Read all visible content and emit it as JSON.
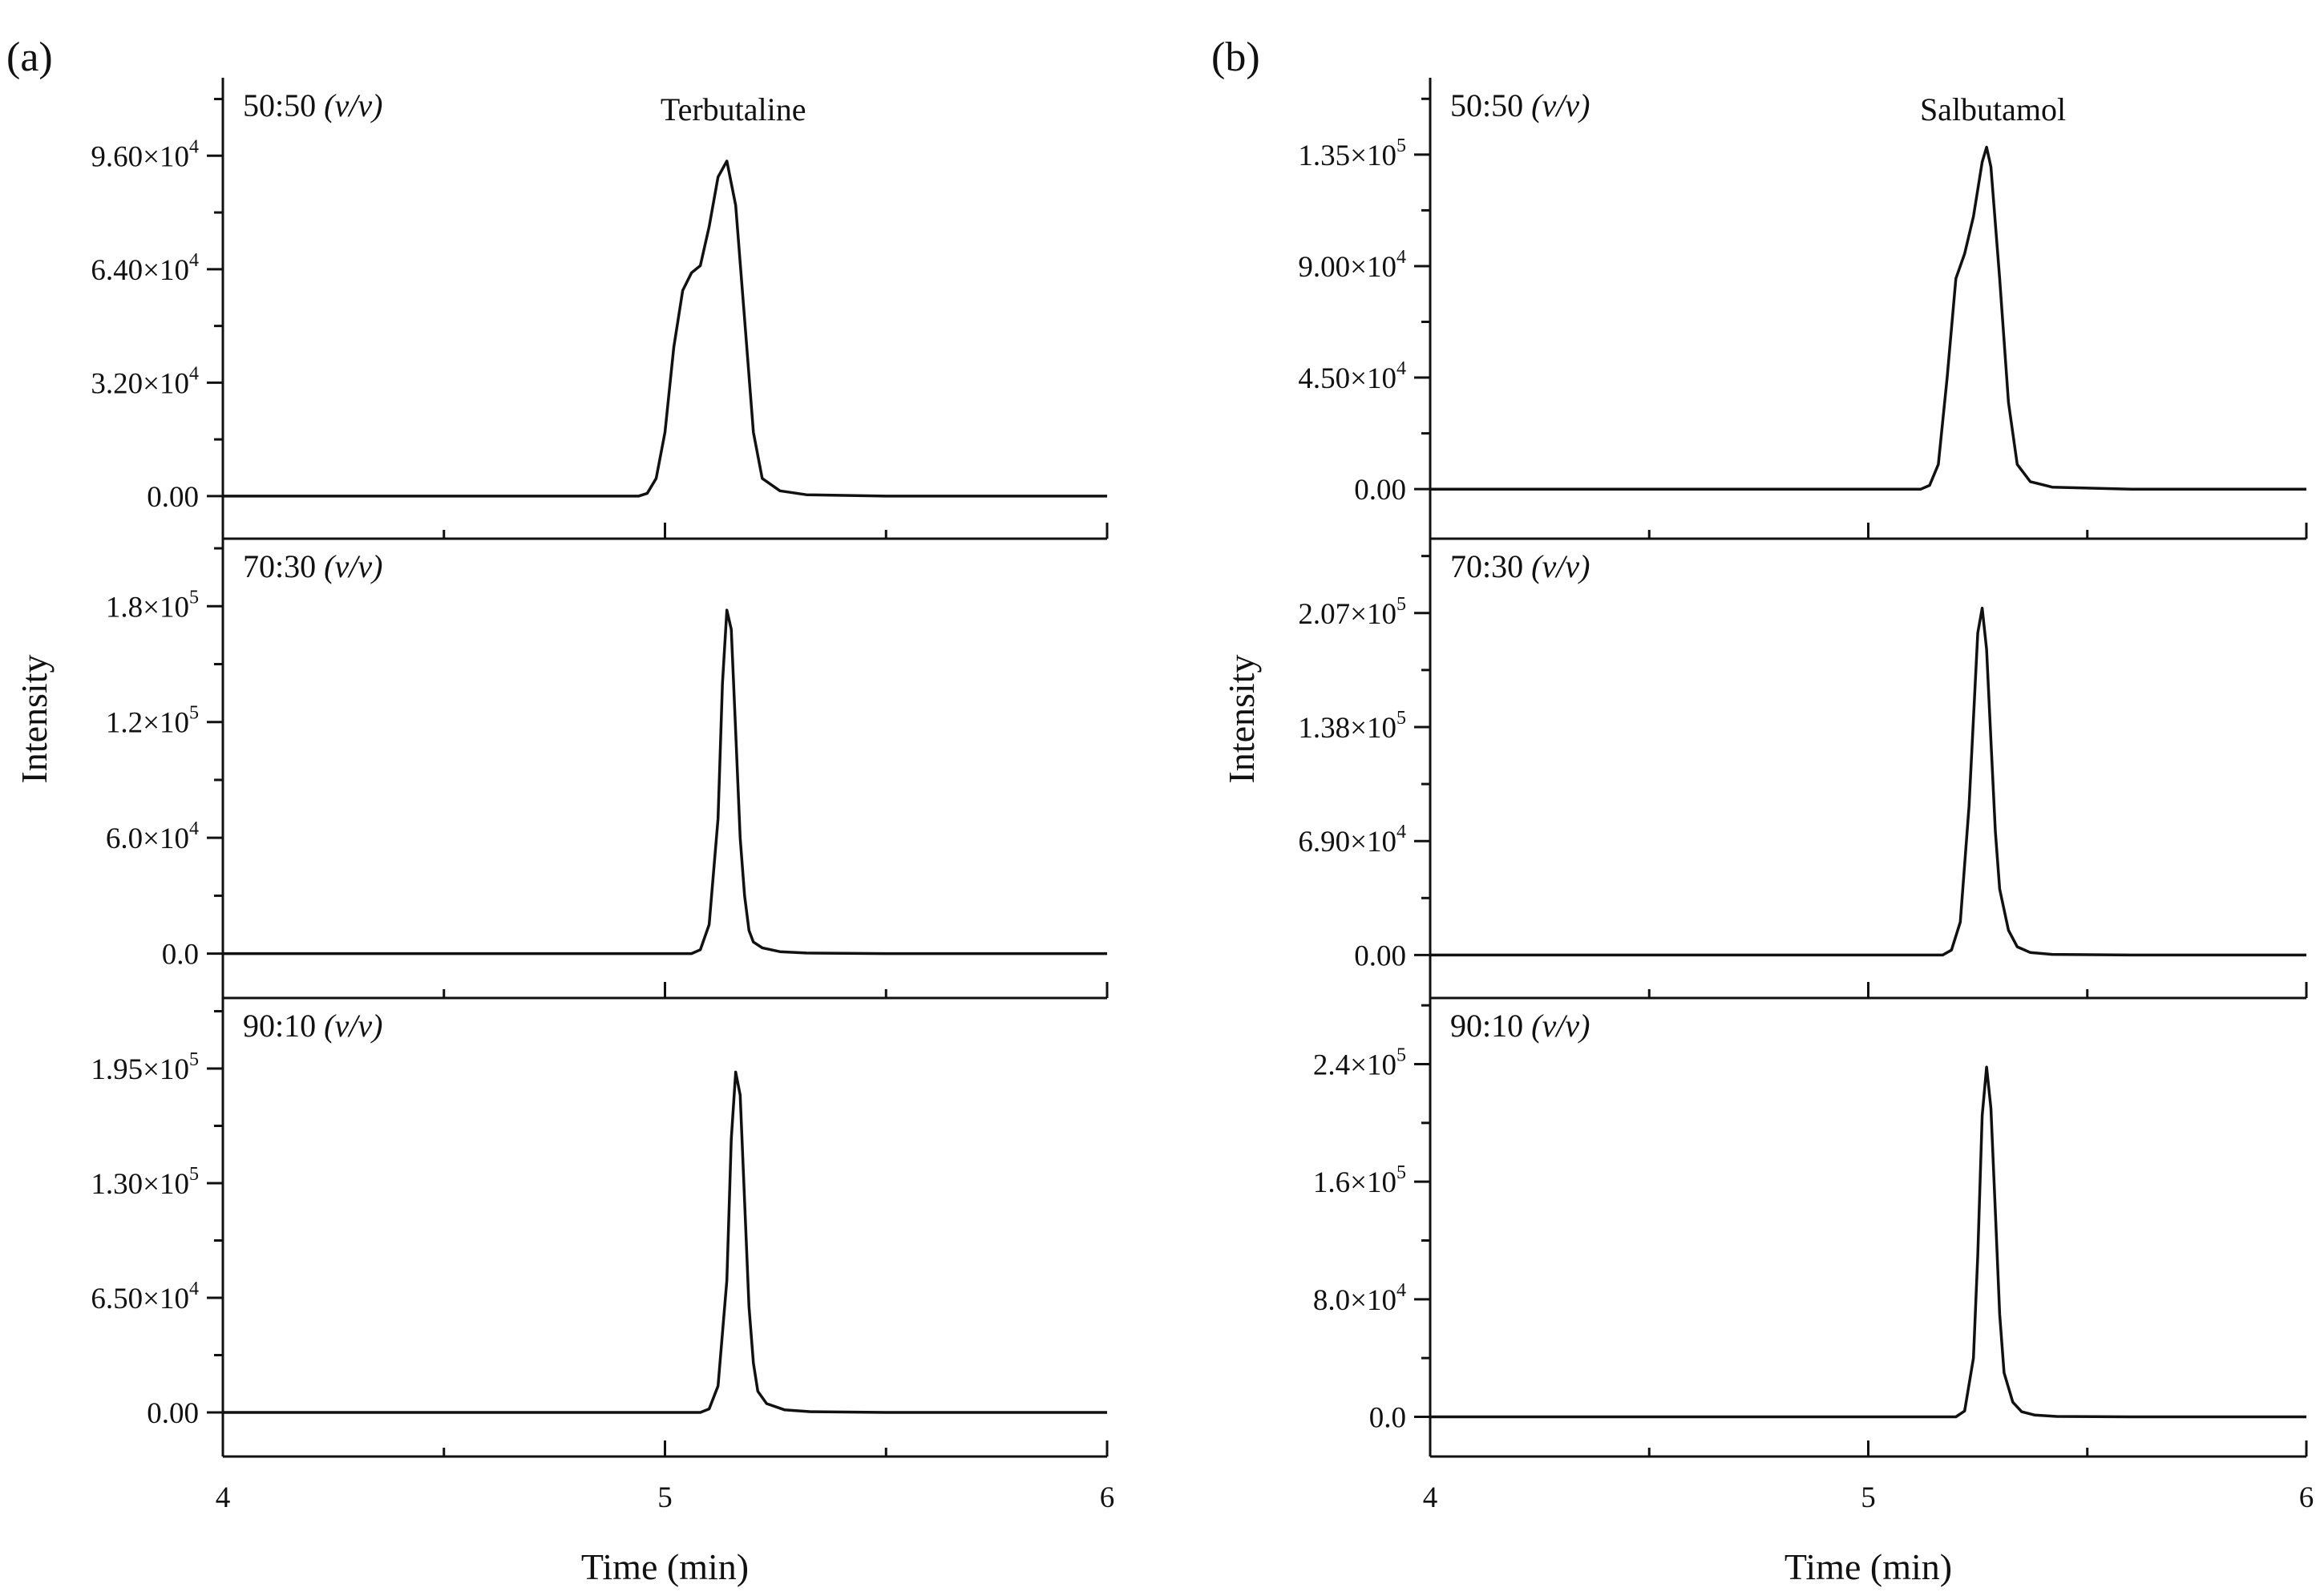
{
  "chart_data": [
    {
      "type": "line",
      "panel_label": "(a)",
      "compound": "Terbutaline",
      "xlabel": "Time (min)",
      "ylabel": "Intensity",
      "xlim": [
        4,
        6
      ],
      "x_ticks": [
        4,
        5,
        6
      ],
      "x_tick_labels": [
        "4",
        "5",
        "6"
      ],
      "subplots": [
        {
          "condition": "50:50",
          "condition_unit": "(v/v)",
          "ylim": [
            -12000,
            118000
          ],
          "y_ticks": [
            {
              "value": 0,
              "mantissa": "0.00",
              "exp": ""
            },
            {
              "value": 32000,
              "mantissa": "3.20×10",
              "exp": "4"
            },
            {
              "value": 64000,
              "mantissa": "6.40×10",
              "exp": "4"
            },
            {
              "value": 96000,
              "mantissa": "9.60×10",
              "exp": "4"
            }
          ],
          "series": [
            {
              "name": "Terbutaline 50:50",
              "x": [
                4.0,
                4.94,
                4.96,
                4.98,
                5.0,
                5.02,
                5.04,
                5.06,
                5.08,
                5.1,
                5.12,
                5.14,
                5.16,
                5.18,
                5.2,
                5.22,
                5.26,
                5.32,
                5.5,
                6.0
              ],
              "y": [
                0,
                0,
                800,
                5000,
                18000,
                42000,
                58000,
                63000,
                65000,
                76000,
                90000,
                94500,
                82000,
                50000,
                18000,
                5000,
                1500,
                400,
                0,
                0
              ]
            }
          ]
        },
        {
          "condition": "70:30",
          "condition_unit": "(v/v)",
          "ylim": [
            -23000,
            215000
          ],
          "y_ticks": [
            {
              "value": 0,
              "mantissa": "0.0",
              "exp": ""
            },
            {
              "value": 60000,
              "mantissa": "6.0×10",
              "exp": "4"
            },
            {
              "value": 120000,
              "mantissa": "1.2×10",
              "exp": "5"
            },
            {
              "value": 180000,
              "mantissa": "1.8×10",
              "exp": "5"
            }
          ],
          "series": [
            {
              "name": "Terbutaline 70:30",
              "x": [
                4.0,
                5.06,
                5.08,
                5.1,
                5.12,
                5.13,
                5.14,
                5.15,
                5.16,
                5.17,
                5.18,
                5.19,
                5.2,
                5.22,
                5.26,
                5.32,
                5.5,
                6.0
              ],
              "y": [
                0,
                0,
                2000,
                15000,
                70000,
                140000,
                178000,
                168000,
                115000,
                60000,
                30000,
                12000,
                6000,
                3000,
                1000,
                300,
                0,
                0
              ]
            }
          ]
        },
        {
          "condition": "90:10",
          "condition_unit": "(v/v)",
          "ylim": [
            -25000,
            235000
          ],
          "y_ticks": [
            {
              "value": 0,
              "mantissa": "0.00",
              "exp": ""
            },
            {
              "value": 65000,
              "mantissa": "6.50×10",
              "exp": "4"
            },
            {
              "value": 130000,
              "mantissa": "1.30×10",
              "exp": "5"
            },
            {
              "value": 195000,
              "mantissa": "1.95×10",
              "exp": "5"
            }
          ],
          "series": [
            {
              "name": "Terbutaline 90:10",
              "x": [
                4.0,
                5.08,
                5.1,
                5.12,
                5.14,
                5.15,
                5.16,
                5.17,
                5.18,
                5.19,
                5.2,
                5.21,
                5.23,
                5.27,
                5.33,
                5.5,
                6.0
              ],
              "y": [
                0,
                0,
                2000,
                15000,
                75000,
                155000,
                193000,
                180000,
                120000,
                60000,
                28000,
                12000,
                5000,
                1500,
                400,
                0,
                0
              ]
            }
          ]
        }
      ]
    },
    {
      "type": "line",
      "panel_label": "(b)",
      "compound": "Salbutamol",
      "xlabel": "Time (min)",
      "ylabel": "Intensity",
      "xlim": [
        4,
        6
      ],
      "x_ticks": [
        4,
        5,
        6
      ],
      "x_tick_labels": [
        "4",
        "5",
        "6"
      ],
      "subplots": [
        {
          "condition": "50:50",
          "condition_unit": "(v/v)",
          "ylim": [
            -20000,
            166000
          ],
          "y_ticks": [
            {
              "value": 0,
              "mantissa": "0.00",
              "exp": ""
            },
            {
              "value": 45000,
              "mantissa": "4.50×10",
              "exp": "4"
            },
            {
              "value": 90000,
              "mantissa": "9.00×10",
              "exp": "4"
            },
            {
              "value": 135000,
              "mantissa": "1.35×10",
              "exp": "5"
            }
          ],
          "series": [
            {
              "name": "Salbutamol 50:50",
              "x": [
                4.0,
                5.12,
                5.14,
                5.16,
                5.18,
                5.2,
                5.22,
                5.24,
                5.26,
                5.27,
                5.28,
                5.3,
                5.32,
                5.34,
                5.37,
                5.42,
                5.6,
                6.0
              ],
              "y": [
                0,
                0,
                1500,
                10000,
                45000,
                85000,
                95000,
                110000,
                132000,
                138000,
                130000,
                85000,
                35000,
                10000,
                3000,
                800,
                0,
                0
              ]
            }
          ]
        },
        {
          "condition": "70:30",
          "condition_unit": "(v/v)",
          "ylim": [
            -26000,
            252000
          ],
          "y_ticks": [
            {
              "value": 0,
              "mantissa": "0.00",
              "exp": ""
            },
            {
              "value": 69000,
              "mantissa": "6.90×10",
              "exp": "4"
            },
            {
              "value": 138000,
              "mantissa": "1.38×10",
              "exp": "5"
            },
            {
              "value": 207000,
              "mantissa": "2.07×10",
              "exp": "5"
            }
          ],
          "series": [
            {
              "name": "Salbutamol 70:30",
              "x": [
                4.0,
                5.17,
                5.19,
                5.21,
                5.23,
                5.25,
                5.26,
                5.27,
                5.28,
                5.29,
                5.3,
                5.32,
                5.34,
                5.37,
                5.42,
                5.6,
                6.0
              ],
              "y": [
                0,
                0,
                3000,
                20000,
                90000,
                195000,
                210000,
                185000,
                130000,
                75000,
                40000,
                15000,
                5000,
                1500,
                400,
                0,
                0
              ]
            }
          ]
        },
        {
          "condition": "90:10",
          "condition_unit": "(v/v)",
          "ylim": [
            -27000,
            285000
          ],
          "y_ticks": [
            {
              "value": 0,
              "mantissa": "0.0",
              "exp": ""
            },
            {
              "value": 80000,
              "mantissa": "8.0×10",
              "exp": "4"
            },
            {
              "value": 160000,
              "mantissa": "1.6×10",
              "exp": "5"
            },
            {
              "value": 240000,
              "mantissa": "2.4×10",
              "exp": "5"
            }
          ],
          "series": [
            {
              "name": "Salbutamol 90:10",
              "x": [
                4.0,
                5.2,
                5.22,
                5.24,
                5.25,
                5.26,
                5.27,
                5.28,
                5.29,
                5.3,
                5.31,
                5.33,
                5.35,
                5.38,
                5.43,
                5.6,
                6.0
              ],
              "y": [
                0,
                0,
                4000,
                40000,
                110000,
                205000,
                238000,
                210000,
                140000,
                70000,
                30000,
                10000,
                3500,
                1200,
                300,
                0,
                0
              ]
            }
          ]
        }
      ]
    }
  ]
}
